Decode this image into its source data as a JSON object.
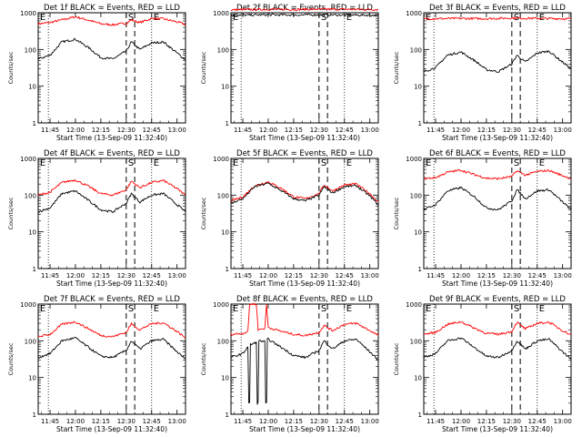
{
  "colors": {
    "events": "#000000",
    "lld": "#ff0000",
    "axis": "#000000",
    "background": "#ffffff"
  },
  "chart_data": [
    {
      "type": "line",
      "title": "Det 1f BLACK = Events, RED = LLD",
      "xlabel": "Start Time (13-Sep-09 11:32:40)",
      "ylabel": "Counts/sec",
      "yscale": "log",
      "ylim": [
        1,
        1000
      ],
      "xticks": [
        "11:45",
        "12:00",
        "12:15",
        "12:30",
        "12:45",
        "13:00"
      ],
      "yticks": [
        "1",
        "10",
        "100",
        "1000"
      ],
      "markers": [
        "E",
        "S",
        "E"
      ],
      "grid": "vertical dotted at E markers; dashed at S-interval",
      "series": [
        {
          "color": "red",
          "x": [
            "11:38",
            "11:45",
            "11:52",
            "12:00",
            "12:08",
            "12:15",
            "12:22",
            "12:30",
            "12:33",
            "12:38",
            "12:45",
            "12:52",
            "13:00",
            "13:05"
          ],
          "values": [
            500,
            540,
            640,
            780,
            620,
            500,
            470,
            520,
            640,
            540,
            700,
            680,
            560,
            480
          ]
        },
        {
          "color": "black",
          "x": [
            "11:38",
            "11:45",
            "11:52",
            "12:00",
            "12:08",
            "12:15",
            "12:22",
            "12:30",
            "12:33",
            "12:38",
            "12:45",
            "12:52",
            "13:00",
            "13:05"
          ],
          "values": [
            55,
            70,
            160,
            190,
            110,
            60,
            55,
            90,
            160,
            100,
            150,
            160,
            80,
            52
          ]
        }
      ]
    },
    {
      "type": "line",
      "title": "Det 2f BLACK = Events, RED = LLD",
      "xlabel": "Start Time (13-Sep-09 11:32:40)",
      "ylabel": "Counts/sec",
      "yscale": "log",
      "ylim": [
        1,
        1000
      ],
      "xticks": [
        "11:45",
        "12:00",
        "12:15",
        "12:30",
        "12:45",
        "13:00"
      ],
      "yticks": [
        "1",
        "10",
        "100",
        "1000"
      ],
      "markers": [
        "E",
        "S",
        "E"
      ],
      "grid": "vertical dotted at E markers; dashed at S-interval",
      "series": [
        {
          "color": "red",
          "x": [
            "11:38",
            "11:45",
            "12:00",
            "12:15",
            "12:30",
            "12:45",
            "13:00",
            "13:05"
          ],
          "values": [
            1200,
            1220,
            1240,
            1230,
            1250,
            1240,
            1230,
            1220
          ]
        },
        {
          "color": "black",
          "x": [
            "11:38",
            "11:45",
            "12:00",
            "12:15",
            "12:30",
            "12:45",
            "13:00",
            "13:05"
          ],
          "values": [
            850,
            860,
            880,
            870,
            880,
            870,
            860,
            850
          ]
        }
      ]
    },
    {
      "type": "line",
      "title": "Det 3f BLACK = Events, RED = LLD",
      "xlabel": "Start Time (13-Sep-09 11:32:40)",
      "ylabel": "Counts/sec",
      "yscale": "log",
      "ylim": [
        1,
        1000
      ],
      "xticks": [
        "11:45",
        "12:00",
        "12:15",
        "12:30",
        "12:45",
        "13:00"
      ],
      "yticks": [
        "1",
        "10",
        "100",
        "1000"
      ],
      "markers": [
        "E",
        "S",
        "E"
      ],
      "grid": "vertical dotted at E markers; dashed at S-interval",
      "series": [
        {
          "color": "red",
          "x": [
            "11:38",
            "11:45",
            "12:00",
            "12:15",
            "12:30",
            "12:45",
            "13:00",
            "13:05"
          ],
          "values": [
            680,
            690,
            700,
            690,
            720,
            700,
            690,
            680
          ]
        },
        {
          "color": "black",
          "x": [
            "11:38",
            "11:45",
            "11:52",
            "12:00",
            "12:08",
            "12:15",
            "12:22",
            "12:30",
            "12:33",
            "12:38",
            "12:45",
            "12:52",
            "13:00",
            "13:05"
          ],
          "values": [
            25,
            32,
            70,
            85,
            50,
            28,
            25,
            40,
            70,
            45,
            80,
            90,
            45,
            30
          ]
        }
      ]
    },
    {
      "type": "line",
      "title": "Det 4f BLACK = Events, RED = LLD",
      "xlabel": "Start Time (13-Sep-09 11:32:40)",
      "ylabel": "Counts/sec",
      "yscale": "log",
      "ylim": [
        1,
        1000
      ],
      "xticks": [
        "11:45",
        "12:00",
        "12:15",
        "12:30",
        "12:45",
        "13:00"
      ],
      "yticks": [
        "1",
        "10",
        "100",
        "1000"
      ],
      "markers": [
        "E",
        "S",
        "E"
      ],
      "grid": "vertical dotted at E markers; dashed at S-interval",
      "series": [
        {
          "color": "red",
          "x": [
            "11:38",
            "11:45",
            "11:52",
            "12:00",
            "12:08",
            "12:15",
            "12:22",
            "12:30",
            "12:33",
            "12:38",
            "12:45",
            "12:52",
            "13:00",
            "13:05"
          ],
          "values": [
            100,
            120,
            220,
            260,
            170,
            110,
            100,
            140,
            240,
            160,
            220,
            250,
            150,
            100
          ]
        },
        {
          "color": "black",
          "x": [
            "11:38",
            "11:45",
            "11:52",
            "12:00",
            "12:08",
            "12:15",
            "12:22",
            "12:30",
            "12:33",
            "12:38",
            "12:45",
            "12:52",
            "13:00",
            "13:05"
          ],
          "values": [
            35,
            45,
            110,
            130,
            70,
            40,
            35,
            60,
            110,
            65,
            100,
            110,
            55,
            35
          ]
        }
      ]
    },
    {
      "type": "line",
      "title": "Det 5f BLACK = Events, RED = LLD",
      "xlabel": "Start Time (13-Sep-09 11:32:40)",
      "ylabel": "Counts/sec",
      "yscale": "log",
      "ylim": [
        1,
        1000
      ],
      "xticks": [
        "11:45",
        "12:00",
        "12:15",
        "12:30",
        "12:45",
        "13:00"
      ],
      "yticks": [
        "1",
        "10",
        "100",
        "1000"
      ],
      "markers": [
        "E",
        "S",
        "E"
      ],
      "grid": "vertical dotted at E markers; dashed at S-interval",
      "series": [
        {
          "color": "red",
          "x": [
            "11:38",
            "11:45",
            "11:52",
            "12:00",
            "12:08",
            "12:15",
            "12:22",
            "12:30",
            "12:33",
            "12:38",
            "12:45",
            "12:52",
            "13:00",
            "13:05"
          ],
          "values": [
            70,
            90,
            180,
            230,
            150,
            90,
            80,
            110,
            190,
            130,
            190,
            200,
            110,
            65
          ]
        },
        {
          "color": "black",
          "x": [
            "11:38",
            "11:45",
            "11:52",
            "12:00",
            "12:08",
            "12:15",
            "12:22",
            "12:30",
            "12:33",
            "12:38",
            "12:45",
            "12:52",
            "13:00",
            "13:05"
          ],
          "values": [
            60,
            80,
            170,
            210,
            130,
            80,
            70,
            100,
            170,
            115,
            170,
            180,
            95,
            55
          ]
        }
      ]
    },
    {
      "type": "line",
      "title": "Det 6f BLACK = Events, RED = LLD",
      "xlabel": "Start Time (13-Sep-09 11:32:40)",
      "ylabel": "Counts/sec",
      "yscale": "log",
      "ylim": [
        1,
        1000
      ],
      "xticks": [
        "11:45",
        "12:00",
        "12:15",
        "12:30",
        "12:45",
        "13:00"
      ],
      "yticks": [
        "1",
        "10",
        "100",
        "1000"
      ],
      "markers": [
        "E",
        "S",
        "E"
      ],
      "grid": "vertical dotted at E markers; dashed at S-interval",
      "series": [
        {
          "color": "red",
          "x": [
            "11:38",
            "11:45",
            "11:52",
            "12:00",
            "12:08",
            "12:15",
            "12:22",
            "12:30",
            "12:33",
            "12:38",
            "12:45",
            "12:52",
            "13:00",
            "13:05"
          ],
          "values": [
            280,
            300,
            420,
            480,
            360,
            290,
            280,
            320,
            460,
            350,
            440,
            470,
            340,
            280
          ]
        },
        {
          "color": "black",
          "x": [
            "11:38",
            "11:45",
            "11:52",
            "12:00",
            "12:08",
            "12:15",
            "12:22",
            "12:30",
            "12:33",
            "12:38",
            "12:45",
            "12:52",
            "13:00",
            "13:05"
          ],
          "values": [
            40,
            55,
            130,
            160,
            90,
            45,
            40,
            70,
            140,
            80,
            130,
            140,
            65,
            40
          ]
        }
      ]
    },
    {
      "type": "line",
      "title": "Det 7f BLACK = Events, RED = LLD",
      "xlabel": "Start Time (13-Sep-09 11:32:40)",
      "ylabel": "Counts/sec",
      "yscale": "log",
      "ylim": [
        1,
        1000
      ],
      "xticks": [
        "11:45",
        "12:00",
        "12:15",
        "12:30",
        "12:45",
        "13:00"
      ],
      "yticks": [
        "1",
        "10",
        "100",
        "1000"
      ],
      "markers": [
        "E",
        "S",
        "E"
      ],
      "grid": "vertical dotted at E markers; dashed at S-interval",
      "series": [
        {
          "color": "red",
          "x": [
            "11:38",
            "11:45",
            "11:52",
            "12:00",
            "12:08",
            "12:15",
            "12:22",
            "12:30",
            "12:33",
            "12:38",
            "12:45",
            "12:52",
            "13:00",
            "13:05"
          ],
          "values": [
            130,
            150,
            280,
            330,
            210,
            140,
            130,
            170,
            290,
            200,
            290,
            310,
            180,
            120
          ]
        },
        {
          "color": "black",
          "x": [
            "11:38",
            "11:45",
            "11:52",
            "12:00",
            "12:08",
            "12:15",
            "12:22",
            "12:30",
            "12:33",
            "12:38",
            "12:45",
            "12:52",
            "13:00",
            "13:05"
          ],
          "values": [
            35,
            45,
            100,
            120,
            65,
            38,
            35,
            55,
            100,
            60,
            100,
            110,
            50,
            32
          ]
        }
      ]
    },
    {
      "type": "line",
      "title": "Det 8f BLACK = Events, RED = LLD",
      "xlabel": "Start Time (13-Sep-09 11:32:40)",
      "ylabel": "Counts/sec",
      "yscale": "log",
      "ylim": [
        1,
        1000
      ],
      "xticks": [
        "11:45",
        "12:00",
        "12:15",
        "12:30",
        "12:45",
        "13:00"
      ],
      "yticks": [
        "1",
        "10",
        "100",
        "1000"
      ],
      "markers": [
        "E",
        "S",
        "E"
      ],
      "grid": "vertical dotted at E markers; dashed at S-interval",
      "series": [
        {
          "color": "red",
          "x": [
            "11:38",
            "11:45",
            "11:48",
            "11:49",
            "11:53",
            "11:54",
            "11:58",
            "11:59",
            "12:00",
            "12:08",
            "12:15",
            "12:22",
            "12:30",
            "12:33",
            "12:38",
            "12:45",
            "12:52",
            "13:00",
            "13:05"
          ],
          "values": [
            150,
            160,
            180,
            1000,
            1000,
            200,
            220,
            1000,
            230,
            180,
            150,
            140,
            170,
            260,
            190,
            280,
            300,
            190,
            140
          ]
        },
        {
          "color": "black",
          "x": [
            "11:38",
            "11:45",
            "11:48",
            "11:49",
            "11:50",
            "11:53",
            "11:54",
            "11:55",
            "11:58",
            "11:59",
            "12:00",
            "12:08",
            "12:15",
            "12:22",
            "12:30",
            "12:33",
            "12:38",
            "12:45",
            "12:52",
            "13:00",
            "13:05"
          ],
          "values": [
            35,
            45,
            70,
            2,
            80,
            90,
            2,
            100,
            95,
            2,
            110,
            65,
            40,
            35,
            55,
            100,
            60,
            100,
            110,
            50,
            30
          ]
        }
      ]
    },
    {
      "type": "line",
      "title": "Det 9f BLACK = Events, RED = LLD",
      "xlabel": "Start Time (13-Sep-09 11:32:40)",
      "ylabel": "Counts/sec",
      "yscale": "log",
      "ylim": [
        1,
        1000
      ],
      "xticks": [
        "11:45",
        "12:00",
        "12:15",
        "12:30",
        "12:45",
        "13:00"
      ],
      "yticks": [
        "1",
        "10",
        "100",
        "1000"
      ],
      "markers": [
        "E",
        "S",
        "E"
      ],
      "grid": "vertical dotted at E markers; dashed at S-interval",
      "series": [
        {
          "color": "red",
          "x": [
            "11:38",
            "11:45",
            "11:52",
            "12:00",
            "12:08",
            "12:15",
            "12:22",
            "12:30",
            "12:33",
            "12:38",
            "12:45",
            "12:52",
            "13:00",
            "13:05"
          ],
          "values": [
            150,
            170,
            280,
            330,
            220,
            160,
            150,
            180,
            320,
            210,
            300,
            320,
            190,
            145
          ]
        },
        {
          "color": "black",
          "x": [
            "11:38",
            "11:45",
            "11:52",
            "12:00",
            "12:08",
            "12:15",
            "12:22",
            "12:30",
            "12:33",
            "12:38",
            "12:45",
            "12:52",
            "13:00",
            "13:05"
          ],
          "values": [
            35,
            45,
            100,
            120,
            65,
            38,
            35,
            55,
            100,
            60,
            100,
            110,
            50,
            32
          ]
        }
      ]
    }
  ]
}
